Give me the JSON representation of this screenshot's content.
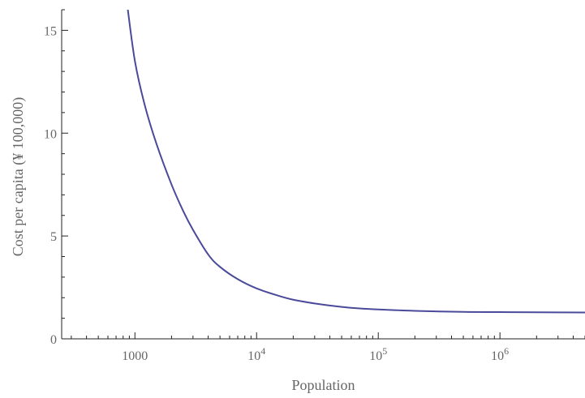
{
  "chart_data": {
    "type": "line",
    "title": "",
    "xlabel": "Population",
    "ylabel": "Cost per capita (¥ 100,000)",
    "x_scale": "log",
    "xlim": [
      250,
      5000000
    ],
    "ylim": [
      0,
      16
    ],
    "grid": false,
    "legend": "none",
    "line_color": "#4a4a9a",
    "x_ticks": [
      {
        "value": 1000,
        "base": "1000",
        "exp": ""
      },
      {
        "value": 10000,
        "base": "10",
        "exp": "4"
      },
      {
        "value": 100000,
        "base": "10",
        "exp": "5"
      },
      {
        "value": 1000000,
        "base": "10",
        "exp": "6"
      }
    ],
    "y_ticks": [
      {
        "value": 0,
        "label": "0"
      },
      {
        "value": 5,
        "label": "5"
      },
      {
        "value": 10,
        "label": "10"
      },
      {
        "value": 15,
        "label": "15"
      }
    ],
    "series": [
      {
        "x": [
          870,
          1000,
          1200,
          1500,
          2000,
          2500,
          3000,
          4000,
          5000,
          7000,
          10000,
          15000,
          20000,
          30000,
          50000,
          70000,
          100000,
          200000,
          500000,
          1000000,
          2000000,
          5000000
        ],
        "y": [
          16.1,
          13.5,
          11.4,
          9.5,
          7.5,
          6.2,
          5.3,
          4.1,
          3.5,
          2.9,
          2.45,
          2.1,
          1.9,
          1.72,
          1.55,
          1.48,
          1.43,
          1.36,
          1.31,
          1.3,
          1.29,
          1.28
        ]
      }
    ]
  }
}
